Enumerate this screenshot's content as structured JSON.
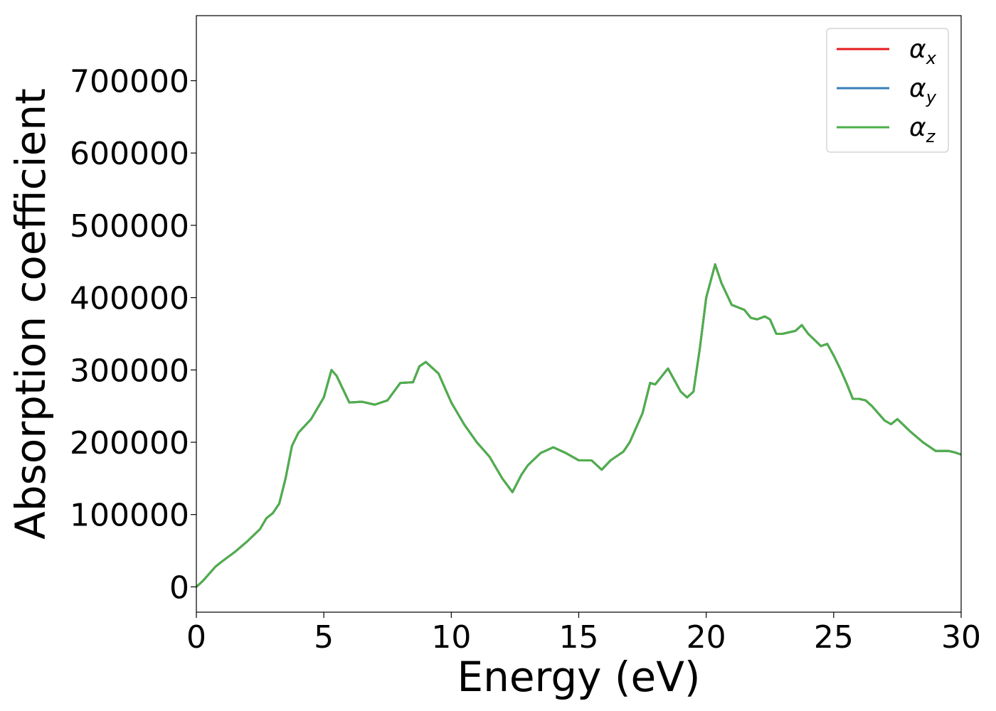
{
  "chart_data": {
    "type": "line",
    "xlabel": "Energy (eV)",
    "ylabel": "Absorption coefficient",
    "xlim": [
      0,
      30
    ],
    "ylim": [
      -35000,
      790000
    ],
    "xticks": [
      0,
      5,
      10,
      15,
      20,
      25,
      30
    ],
    "xtick_labels": [
      "0",
      "5",
      "10",
      "15",
      "20",
      "25",
      "30"
    ],
    "yticks": [
      0,
      100000,
      200000,
      300000,
      400000,
      500000,
      600000,
      700000
    ],
    "ytick_labels": [
      "0",
      "100000",
      "200000",
      "300000",
      "400000",
      "500000",
      "600000",
      "700000"
    ],
    "grid": false,
    "legend_position": "top-right",
    "x": [
      0,
      0.25,
      0.5,
      0.75,
      1.0,
      1.5,
      2.0,
      2.5,
      2.75,
      3.0,
      3.25,
      3.5,
      3.75,
      4.0,
      4.5,
      5.0,
      5.3,
      5.5,
      6.0,
      6.5,
      7.0,
      7.5,
      8.0,
      8.5,
      8.75,
      9.0,
      9.5,
      10.0,
      10.5,
      11.0,
      11.5,
      12.0,
      12.4,
      12.75,
      13.0,
      13.5,
      14.0,
      14.5,
      15.0,
      15.5,
      15.9,
      16.25,
      16.75,
      17.0,
      17.5,
      17.8,
      18.0,
      18.5,
      19.0,
      19.25,
      19.5,
      19.75,
      20.0,
      20.35,
      20.6,
      21.0,
      21.5,
      21.75,
      22.0,
      22.3,
      22.5,
      22.75,
      23.0,
      23.5,
      23.75,
      24.0,
      24.5,
      24.75,
      25.0,
      25.25,
      25.5,
      25.75,
      26.0,
      26.25,
      26.5,
      27.0,
      27.25,
      27.5,
      28.0,
      28.5,
      29.0,
      29.5,
      29.75,
      30.0
    ],
    "series": [
      {
        "name": "αx",
        "label_base": "α",
        "label_sub": "x",
        "color": "#e41a1c",
        "values": [
          0,
          8000,
          18000,
          28000,
          35000,
          48000,
          63000,
          80000,
          95000,
          102000,
          115000,
          150000,
          195000,
          213000,
          232000,
          262000,
          300000,
          292000,
          255000,
          256000,
          252000,
          258000,
          282000,
          283000,
          305000,
          311000,
          295000,
          255000,
          225000,
          200000,
          180000,
          150000,
          131000,
          155000,
          168000,
          185000,
          193000,
          185000,
          175000,
          175000,
          162000,
          175000,
          187000,
          200000,
          240000,
          282000,
          280000,
          302000,
          270000,
          262000,
          270000,
          330000,
          400000,
          446000,
          420000,
          390000,
          383000,
          372000,
          370000,
          374000,
          370000,
          350000,
          350000,
          354000,
          362000,
          350000,
          333000,
          336000,
          320000,
          302000,
          282000,
          260000,
          260000,
          258000,
          250000,
          230000,
          225000,
          232000,
          215000,
          200000,
          188000,
          188000,
          186000,
          183000
        ]
      },
      {
        "name": "αy",
        "label_base": "α",
        "label_sub": "y",
        "color": "#377eb8",
        "values": [
          0,
          8000,
          18000,
          28000,
          35000,
          48000,
          63000,
          80000,
          95000,
          102000,
          115000,
          150000,
          195000,
          213000,
          232000,
          262000,
          300000,
          292000,
          255000,
          256000,
          252000,
          258000,
          282000,
          283000,
          305000,
          311000,
          295000,
          255000,
          225000,
          200000,
          180000,
          150000,
          131000,
          155000,
          168000,
          185000,
          193000,
          185000,
          175000,
          175000,
          162000,
          175000,
          187000,
          200000,
          240000,
          282000,
          280000,
          302000,
          270000,
          262000,
          270000,
          330000,
          400000,
          446000,
          420000,
          390000,
          383000,
          372000,
          370000,
          374000,
          370000,
          350000,
          350000,
          354000,
          362000,
          350000,
          333000,
          336000,
          320000,
          302000,
          282000,
          260000,
          260000,
          258000,
          250000,
          230000,
          225000,
          232000,
          215000,
          200000,
          188000,
          188000,
          186000,
          183000
        ]
      },
      {
        "name": "αz",
        "label_base": "α",
        "label_sub": "z",
        "color": "#4daf4a",
        "values": [
          0,
          8000,
          18000,
          28000,
          35000,
          48000,
          63000,
          80000,
          95000,
          102000,
          115000,
          150000,
          195000,
          213000,
          232000,
          262000,
          300000,
          292000,
          255000,
          256000,
          252000,
          258000,
          282000,
          283000,
          305000,
          311000,
          295000,
          255000,
          225000,
          200000,
          180000,
          150000,
          131000,
          155000,
          168000,
          185000,
          193000,
          185000,
          175000,
          175000,
          162000,
          175000,
          187000,
          200000,
          240000,
          282000,
          280000,
          302000,
          270000,
          262000,
          270000,
          330000,
          400000,
          446000,
          420000,
          390000,
          383000,
          372000,
          370000,
          374000,
          370000,
          350000,
          350000,
          354000,
          362000,
          350000,
          333000,
          336000,
          320000,
          302000,
          282000,
          260000,
          260000,
          258000,
          250000,
          230000,
          225000,
          232000,
          215000,
          200000,
          188000,
          188000,
          186000,
          183000
        ]
      }
    ]
  }
}
